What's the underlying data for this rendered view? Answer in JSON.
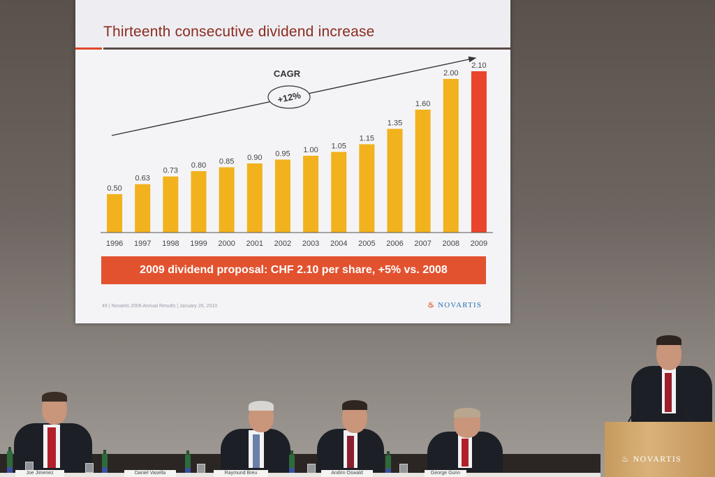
{
  "slide": {
    "title": "Thirteenth consecutive dividend increase",
    "banner": "2009 dividend proposal: CHF 2.10 per share, +5% vs. 2008",
    "footnote": "49 | Novartis 2009 Annual Results | January 26, 2010",
    "logo_text": "NOVARTIS"
  },
  "chart_data": {
    "type": "bar",
    "categories": [
      "1996",
      "1997",
      "1998",
      "1999",
      "2000",
      "2001",
      "2002",
      "2003",
      "2004",
      "2005",
      "2006",
      "2007",
      "2008",
      "2009"
    ],
    "values": [
      0.5,
      0.63,
      0.73,
      0.8,
      0.85,
      0.9,
      0.95,
      1.0,
      1.05,
      1.15,
      1.35,
      1.6,
      2.0,
      2.1
    ],
    "value_labels": [
      "0.50",
      "0.63",
      "0.73",
      "0.80",
      "0.85",
      "0.90",
      "0.95",
      "1.00",
      "1.05",
      "1.15",
      "1.35",
      "1.60",
      "2.00",
      "2.10"
    ],
    "highlight_index": 13,
    "colors": {
      "bar": "#f2b21e",
      "highlight": "#e9452c",
      "axis": "#555555",
      "label": "#444444"
    },
    "annotation": {
      "heading": "CAGR",
      "value": "+12%"
    },
    "ylim": [
      0,
      2.3
    ],
    "grid": false,
    "legend": "none"
  },
  "stage": {
    "nameplates": [
      "Joe Jimenez",
      "Daniel Vasella",
      "Raymund Breu",
      "Andrin Oswald",
      "George Gunn"
    ],
    "podium_logo": "NOVARTIS"
  }
}
